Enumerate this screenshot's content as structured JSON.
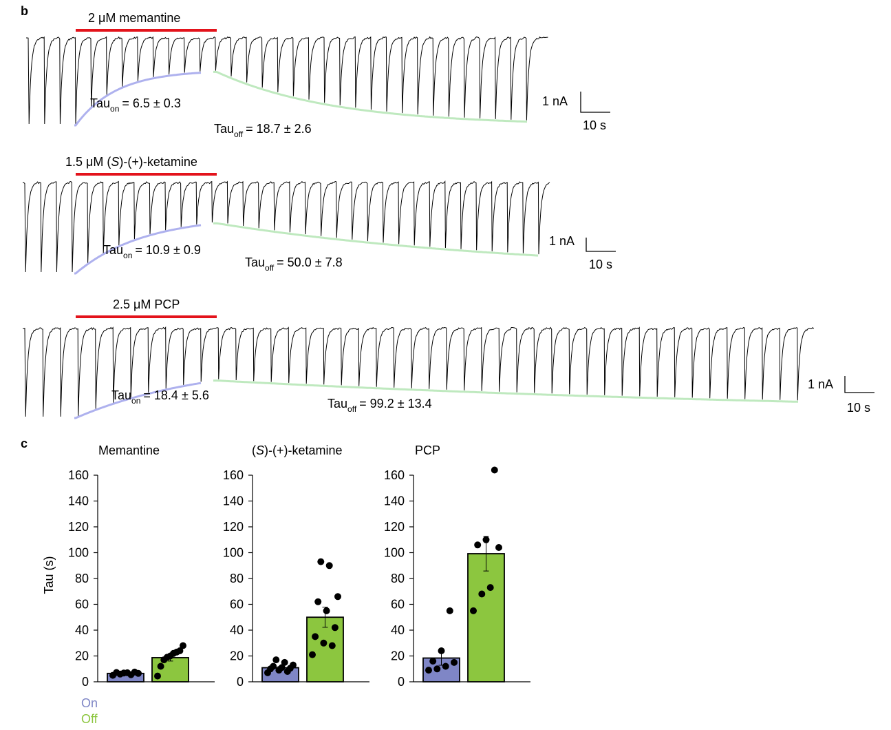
{
  "panel_b": {
    "label": "b",
    "traces": [
      {
        "drug_label": "2 μM memantine",
        "tau_on_label": "Tau",
        "tau_on_sub": "on",
        "tau_on_value": "= 6.5 ± 0.3",
        "tau_off_label": "Tau",
        "tau_off_sub": "off",
        "tau_off_value": "= 18.7 ± 2.6",
        "scale_y_label": "1 nA",
        "scale_x_label": "10 s",
        "tau_on": 6.5,
        "tau_off": 18.7
      },
      {
        "drug_label_pre": "1.5 μM (",
        "drug_label_italic": "S",
        "drug_label_post": ")-(+)-ketamine",
        "tau_on_label": "Tau",
        "tau_on_sub": "on",
        "tau_on_value": "= 10.9 ± 0.9",
        "tau_off_label": "Tau",
        "tau_off_sub": "off",
        "tau_off_value": "= 50.0 ± 7.8",
        "scale_y_label": "1 nA",
        "scale_x_label": "10 s",
        "tau_on": 10.9,
        "tau_off": 50.0
      },
      {
        "drug_label": "2.5 μM PCP",
        "tau_on_label": "Tau",
        "tau_on_sub": "on",
        "tau_on_value": "= 18.4 ± 5.6",
        "tau_off_label": "Tau",
        "tau_off_sub": "off",
        "tau_off_value": "= 99.2 ± 13.4",
        "scale_y_label": "1 nA",
        "scale_x_label": "10 s",
        "tau_on": 18.4,
        "tau_off": 99.2
      }
    ]
  },
  "panel_c": {
    "label": "c",
    "ylabel": "Tau (s)",
    "legend": {
      "on": "On",
      "off": "Off"
    },
    "colors": {
      "on": "#7f86c6",
      "off": "#8cc63f",
      "red_bar": "#e3131b",
      "fit_on": "#aeb1ee",
      "fit_off": "#bfe9bf"
    }
  },
  "chart_data": [
    {
      "type": "bar",
      "title": "Memantine",
      "categories": [
        "On",
        "Off"
      ],
      "values": [
        6.5,
        18.7
      ],
      "errors": [
        0.3,
        2.6
      ],
      "points": [
        [
          5,
          5.5,
          6,
          6.5,
          7,
          7.2,
          7.5,
          6.8
        ],
        [
          4.5,
          12,
          17,
          19,
          20,
          22,
          23,
          24,
          28
        ]
      ],
      "ylim": [
        0,
        160
      ],
      "yticks": [
        0,
        20,
        40,
        60,
        80,
        100,
        120,
        140,
        160
      ]
    },
    {
      "type": "bar",
      "title_pre": "(",
      "title_italic": "S",
      "title_post": ")-(+)-ketamine",
      "categories": [
        "On",
        "Off"
      ],
      "values": [
        10.9,
        50.0
      ],
      "errors": [
        0.9,
        7.8
      ],
      "points": [
        [
          7,
          8,
          9,
          10,
          10.5,
          11,
          12,
          13,
          15,
          17
        ],
        [
          21,
          28,
          30,
          35,
          42,
          55,
          62,
          66,
          90,
          93
        ]
      ],
      "ylim": [
        0,
        160
      ],
      "yticks": [
        0,
        20,
        40,
        60,
        80,
        100,
        120,
        140,
        160
      ]
    },
    {
      "type": "bar",
      "title": "PCP",
      "categories": [
        "On",
        "Off"
      ],
      "values": [
        18.4,
        99.2
      ],
      "errors": [
        5.6,
        13.4
      ],
      "points": [
        [
          9,
          10,
          12,
          15,
          16,
          24,
          55
        ],
        [
          55,
          68,
          73,
          104,
          106,
          110,
          164
        ]
      ],
      "ylim": [
        0,
        160
      ],
      "yticks": [
        0,
        20,
        40,
        60,
        80,
        100,
        120,
        140,
        160
      ]
    }
  ]
}
